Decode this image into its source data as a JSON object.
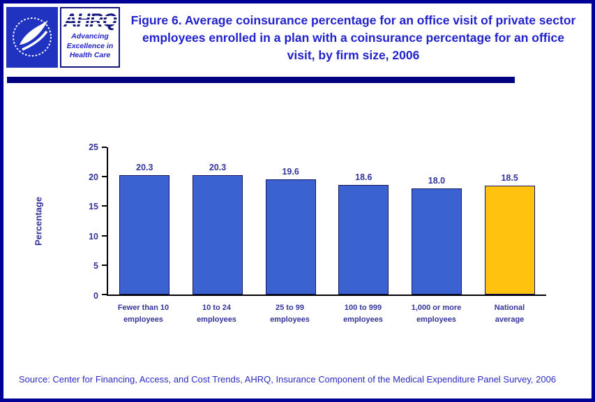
{
  "header": {
    "title": "Figure 6. Average coinsurance percentage for an office visit of private sector employees enrolled in a plan with a coinsurance percentage for an office visit, by firm size, 2006"
  },
  "logos": {
    "ahrq": {
      "wordmark": "AHRQ",
      "tagline_lines": [
        "Advancing",
        "Excellence in",
        "Health Care"
      ]
    }
  },
  "chart_data": {
    "type": "bar",
    "title": "",
    "categories": [
      "Fewer than 10\nemployees",
      "10 to 24\nemployees",
      "25 to 99\nemployees",
      "100 to 999\nemployees",
      "1,000 or more\nemployees",
      "National\naverage"
    ],
    "values": [
      20.3,
      20.3,
      19.6,
      18.6,
      18.0,
      18.5
    ],
    "value_labels": [
      "20.3",
      "20.3",
      "19.6",
      "18.6",
      "18.0",
      "18.5"
    ],
    "xlabel": "",
    "ylabel": "Percentage",
    "ylim": [
      0,
      25
    ],
    "yticks": [
      0,
      5,
      10,
      15,
      20,
      25
    ],
    "grid": false,
    "legend": false,
    "bar_colors": [
      "#3a63d1",
      "#3a63d1",
      "#3a63d1",
      "#3a63d1",
      "#3a63d1",
      "#ffc20e"
    ],
    "bar_border_color": "#13135e"
  },
  "footer": {
    "source": "Source: Center for Financing, Access, and Cost Trends, AHRQ, Insurance Component of the Medical Expenditure Panel Survey, 2006"
  }
}
